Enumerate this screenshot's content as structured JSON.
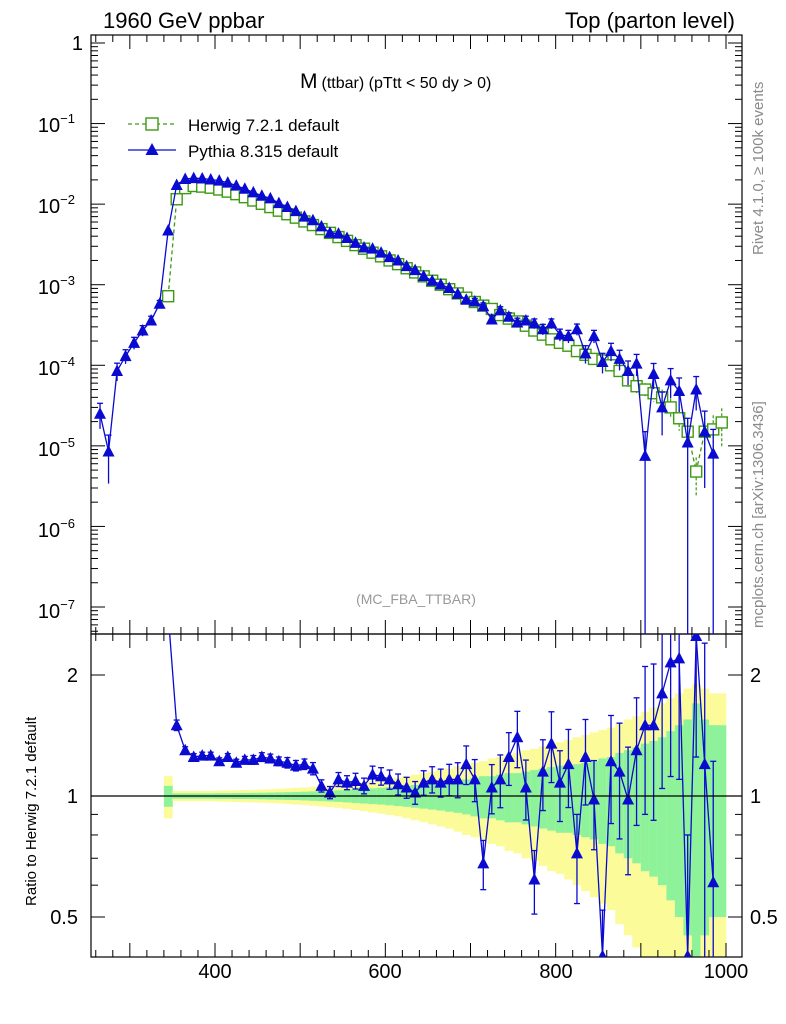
{
  "header": {
    "left": "1960 GeV ppbar",
    "right": "Top (parton level)"
  },
  "side_texts": {
    "rivet": "Rivet 4.1.0, ≥ 100k events",
    "mcplots": "mcplots.cern.ch [arXiv:1306.3436]"
  },
  "colors": {
    "herwig": "#3d9a12",
    "pythia": "#0a0ad0",
    "band_inner": "#8ef29a",
    "band_outer": "#fbfb9a",
    "axis": "#000000",
    "watermark": "#999999"
  },
  "chart_data": [
    {
      "type": "line",
      "title": "M",
      "title_suffix": "(ttbar) (pTtt < 50 dy > 0)",
      "watermark": "(MC_FBA_TTBAR)",
      "xlim": [
        250,
        1010
      ],
      "yscale": "log",
      "ylim": [
        4e-08,
        1.5
      ],
      "y_tick_labels": [
        {
          "value": 1,
          "base": "1",
          "exp": ""
        },
        {
          "value": 0.1,
          "base": "10",
          "exp": "−1"
        },
        {
          "value": 0.01,
          "base": "10",
          "exp": "−2"
        },
        {
          "value": 0.001,
          "base": "10",
          "exp": "−3"
        },
        {
          "value": 0.0001,
          "base": "10",
          "exp": "−4"
        },
        {
          "value": 1e-05,
          "base": "10",
          "exp": "−5"
        },
        {
          "value": 1e-06,
          "base": "10",
          "exp": "−6"
        },
        {
          "value": 1e-07,
          "base": "10",
          "exp": "−7"
        }
      ],
      "legend": [
        {
          "name": "Herwig 7.2.1 default",
          "marker": "open-square",
          "style": "dashed"
        },
        {
          "name": "Pythia 8.315 default",
          "marker": "filled-triangle",
          "style": "solid"
        }
      ],
      "series": [
        {
          "name": "Herwig 7.2.1 default",
          "x": [
            345,
            355,
            365,
            375,
            385,
            395,
            405,
            415,
            425,
            435,
            445,
            455,
            465,
            475,
            485,
            495,
            505,
            515,
            525,
            535,
            545,
            555,
            565,
            575,
            585,
            595,
            605,
            615,
            625,
            635,
            645,
            655,
            665,
            675,
            685,
            695,
            705,
            715,
            725,
            735,
            745,
            755,
            765,
            775,
            785,
            795,
            805,
            815,
            825,
            835,
            845,
            855,
            865,
            875,
            885,
            895,
            905,
            915,
            925,
            935,
            945,
            955,
            965,
            975,
            985,
            995
          ],
          "y": [
            0.00072,
            0.0115,
            0.0158,
            0.0168,
            0.0165,
            0.016,
            0.0152,
            0.0143,
            0.0133,
            0.0122,
            0.0111,
            0.0101,
            0.0092,
            0.0083,
            0.0075,
            0.0068,
            0.0061,
            0.0055,
            0.0049,
            0.0044,
            0.0039,
            0.0035,
            0.0031,
            0.0028,
            0.0025,
            0.00225,
            0.002,
            0.0018,
            0.0016,
            0.00142,
            0.00127,
            0.00112,
            0.001,
            0.00088,
            0.00078,
            0.00069,
            0.00061,
            0.00055,
            0.0005,
            0.00042,
            0.00038,
            0.00035,
            0.00031,
            0.00027,
            0.00024,
            0.00021,
            0.00019,
            0.000175,
            0.00015,
            0.000135,
            0.00012,
            0.000115,
            0.0001,
            8.5e-05,
            6.5e-05,
            5.5e-05,
            5e-05,
            4.5e-05,
            4e-05,
            3e-05,
            2.2e-05,
            1.5e-05,
            4.8e-06,
            1.5e-05,
            1.6e-05,
            1.95e-05
          ],
          "yerr": [
            0.1,
            0.02,
            0.02,
            0.02,
            0.02,
            0.02,
            0.02,
            0.02,
            0.02,
            0.02,
            0.02,
            0.02,
            0.02,
            0.02,
            0.02,
            0.02,
            0.02,
            0.02,
            0.02,
            0.02,
            0.02,
            0.03,
            0.03,
            0.03,
            0.03,
            0.03,
            0.03,
            0.03,
            0.03,
            0.03,
            0.04,
            0.04,
            0.04,
            0.04,
            0.04,
            0.05,
            0.05,
            0.05,
            0.05,
            0.06,
            0.06,
            0.06,
            0.07,
            0.07,
            0.08,
            0.08,
            0.09,
            0.09,
            0.1,
            0.1,
            0.12,
            0.12,
            0.14,
            0.15,
            0.17,
            0.18,
            0.2,
            0.22,
            0.25,
            0.28,
            0.3,
            0.35,
            0.5,
            0.5,
            0.5,
            0.5
          ]
        },
        {
          "name": "Pythia 8.315 default",
          "x": [
            265,
            275,
            285,
            295,
            305,
            315,
            325,
            335,
            345,
            355,
            365,
            375,
            385,
            395,
            405,
            415,
            425,
            435,
            445,
            455,
            465,
            475,
            485,
            495,
            505,
            515,
            525,
            535,
            545,
            555,
            565,
            575,
            585,
            595,
            605,
            615,
            625,
            635,
            645,
            655,
            665,
            675,
            685,
            695,
            705,
            715,
            725,
            735,
            745,
            755,
            765,
            775,
            785,
            795,
            805,
            815,
            825,
            835,
            845,
            855,
            865,
            875,
            885,
            895,
            905,
            915,
            925,
            935,
            945,
            955,
            965,
            975,
            985
          ],
          "y": [
            2.5e-05,
            8.5e-06,
            8.5e-05,
            0.00013,
            0.00019,
            0.00027,
            0.00036,
            0.00058,
            0.0047,
            0.0173,
            0.0205,
            0.021,
            0.0208,
            0.0202,
            0.0196,
            0.0185,
            0.017,
            0.0155,
            0.014,
            0.0127,
            0.0118,
            0.0103,
            0.0092,
            0.0082,
            0.007,
            0.0063,
            0.0053,
            0.0044,
            0.0043,
            0.0038,
            0.0033,
            0.0029,
            0.0028,
            0.0025,
            0.0022,
            0.002,
            0.0017,
            0.00152,
            0.00128,
            0.00112,
            0.00101,
            0.00091,
            0.00077,
            0.00065,
            0.00062,
            0.00054,
            0.00037,
            0.00048,
            0.0004,
            0.00034,
            0.00036,
            0.00033,
            0.00028,
            0.00033,
            0.00024,
            0.00023,
            0.00028,
            0.00014,
            0.00023,
            0.00011,
            0.00015,
            0.00012,
            8.5e-05,
            0.000105,
            7.5e-06,
            7.8e-05,
            3e-05,
            6.5e-05,
            4.8e-05,
            1.1e-05,
            5e-05,
            1.5e-05,
            8e-06
          ],
          "yerr": [
            0.35,
            0.6,
            0.25,
            0.2,
            0.17,
            0.15,
            0.13,
            0.1,
            0.04,
            0.02,
            0.02,
            0.02,
            0.02,
            0.02,
            0.02,
            0.02,
            0.02,
            0.02,
            0.02,
            0.02,
            0.02,
            0.02,
            0.02,
            0.03,
            0.03,
            0.03,
            0.03,
            0.03,
            0.03,
            0.04,
            0.04,
            0.04,
            0.04,
            0.05,
            0.05,
            0.05,
            0.05,
            0.06,
            0.06,
            0.06,
            0.07,
            0.07,
            0.08,
            0.08,
            0.09,
            0.1,
            0.12,
            0.11,
            0.12,
            0.13,
            0.13,
            0.14,
            0.15,
            0.14,
            0.17,
            0.18,
            0.16,
            0.25,
            0.18,
            0.28,
            0.25,
            0.28,
            0.33,
            0.3,
            1.0,
            0.35,
            0.55,
            0.4,
            0.45,
            1.0,
            0.45,
            0.8,
            1.0
          ]
        }
      ]
    },
    {
      "type": "line",
      "ylabel": "Ratio to Herwig 7.2.1 default",
      "xlim": [
        250,
        1010
      ],
      "yscale": "log",
      "ylim": [
        0.42,
        2.4
      ],
      "x_tick_labels": [
        "400",
        "600",
        "800",
        "1000"
      ],
      "y_tick_labels": [
        "2",
        "1",
        "0.5"
      ],
      "reference_line": 1,
      "bands": {
        "x": [
          345,
          355,
          365,
          375,
          385,
          395,
          405,
          415,
          425,
          435,
          445,
          455,
          465,
          475,
          485,
          495,
          505,
          515,
          525,
          535,
          545,
          555,
          565,
          575,
          585,
          595,
          605,
          615,
          625,
          635,
          645,
          655,
          665,
          675,
          685,
          695,
          705,
          715,
          725,
          735,
          745,
          755,
          765,
          775,
          785,
          795,
          805,
          815,
          825,
          835,
          845,
          855,
          865,
          875,
          885,
          895,
          905,
          915,
          925,
          935,
          945,
          955,
          965,
          975,
          985,
          995
        ],
        "inner_rel": [
          0.06,
          0.015,
          0.015,
          0.015,
          0.015,
          0.015,
          0.016,
          0.016,
          0.017,
          0.017,
          0.018,
          0.019,
          0.02,
          0.021,
          0.022,
          0.023,
          0.025,
          0.027,
          0.029,
          0.031,
          0.033,
          0.036,
          0.039,
          0.042,
          0.045,
          0.048,
          0.052,
          0.056,
          0.06,
          0.065,
          0.07,
          0.075,
          0.08,
          0.086,
          0.092,
          0.1,
          0.11,
          0.12,
          0.12,
          0.13,
          0.14,
          0.14,
          0.15,
          0.16,
          0.17,
          0.18,
          0.19,
          0.19,
          0.2,
          0.21,
          0.22,
          0.24,
          0.25,
          0.28,
          0.3,
          0.32,
          0.35,
          0.37,
          0.4,
          0.45,
          0.5,
          0.55,
          0.7,
          0.55,
          0.5,
          0.5
        ],
        "outer_rel": [
          0.12,
          0.03,
          0.03,
          0.03,
          0.03,
          0.03,
          0.032,
          0.033,
          0.034,
          0.035,
          0.036,
          0.038,
          0.04,
          0.042,
          0.045,
          0.048,
          0.05,
          0.054,
          0.058,
          0.062,
          0.066,
          0.071,
          0.077,
          0.083,
          0.09,
          0.096,
          0.103,
          0.11,
          0.12,
          0.13,
          0.14,
          0.15,
          0.16,
          0.17,
          0.185,
          0.2,
          0.21,
          0.22,
          0.24,
          0.25,
          0.27,
          0.28,
          0.3,
          0.31,
          0.33,
          0.35,
          0.36,
          0.38,
          0.4,
          0.42,
          0.44,
          0.46,
          0.48,
          0.52,
          0.55,
          0.58,
          0.62,
          0.66,
          0.7,
          0.75,
          0.8,
          0.85,
          0.9,
          0.85,
          0.8,
          0.8
        ]
      },
      "series": [
        {
          "name": "Pythia 8.315 default",
          "x": [
            355,
            365,
            375,
            385,
            395,
            405,
            415,
            425,
            435,
            445,
            455,
            465,
            475,
            485,
            495,
            505,
            515,
            525,
            535,
            545,
            555,
            565,
            575,
            585,
            595,
            605,
            615,
            625,
            635,
            645,
            655,
            665,
            675,
            685,
            695,
            705,
            715,
            725,
            735,
            745,
            755,
            765,
            775,
            785,
            795,
            805,
            815,
            825,
            835,
            845,
            855,
            865,
            875,
            885,
            895,
            905,
            915,
            925,
            935,
            945,
            955,
            965,
            975,
            985
          ],
          "y": [
            1.5,
            1.3,
            1.25,
            1.26,
            1.26,
            1.22,
            1.25,
            1.21,
            1.23,
            1.23,
            1.25,
            1.24,
            1.22,
            1.21,
            1.19,
            1.2,
            1.17,
            1.06,
            1.02,
            1.1,
            1.08,
            1.09,
            1.06,
            1.13,
            1.12,
            1.1,
            1.07,
            1.05,
            1.02,
            1.08,
            1.1,
            1.08,
            1.1,
            1.1,
            1.2,
            1.1,
            0.68,
            1.05,
            1.1,
            1.25,
            1.4,
            1.05,
            0.62,
            1.15,
            1.35,
            1.08,
            1.2,
            0.72,
            1.25,
            0.98,
            0.4,
            1.22,
            1.15,
            0.98,
            1.3,
            1.5,
            1.5,
            1.8,
            2.15,
            2.2,
            0.4,
            2.5,
            1.2,
            0.61
          ],
          "rel_err": [
            0.03,
            0.02,
            0.02,
            0.02,
            0.02,
            0.02,
            0.02,
            0.02,
            0.02,
            0.025,
            0.025,
            0.025,
            0.025,
            0.03,
            0.03,
            0.03,
            0.035,
            0.035,
            0.035,
            0.04,
            0.04,
            0.045,
            0.045,
            0.05,
            0.05,
            0.055,
            0.06,
            0.06,
            0.065,
            0.07,
            0.075,
            0.08,
            0.09,
            0.1,
            0.11,
            0.12,
            0.14,
            0.14,
            0.15,
            0.15,
            0.16,
            0.17,
            0.18,
            0.2,
            0.2,
            0.2,
            0.22,
            0.25,
            0.24,
            0.25,
            0.3,
            0.3,
            0.32,
            0.35,
            0.35,
            0.4,
            0.42,
            0.42,
            0.48,
            0.5,
            1.0,
            0.5,
            1.0,
            1.0
          ]
        }
      ]
    }
  ]
}
